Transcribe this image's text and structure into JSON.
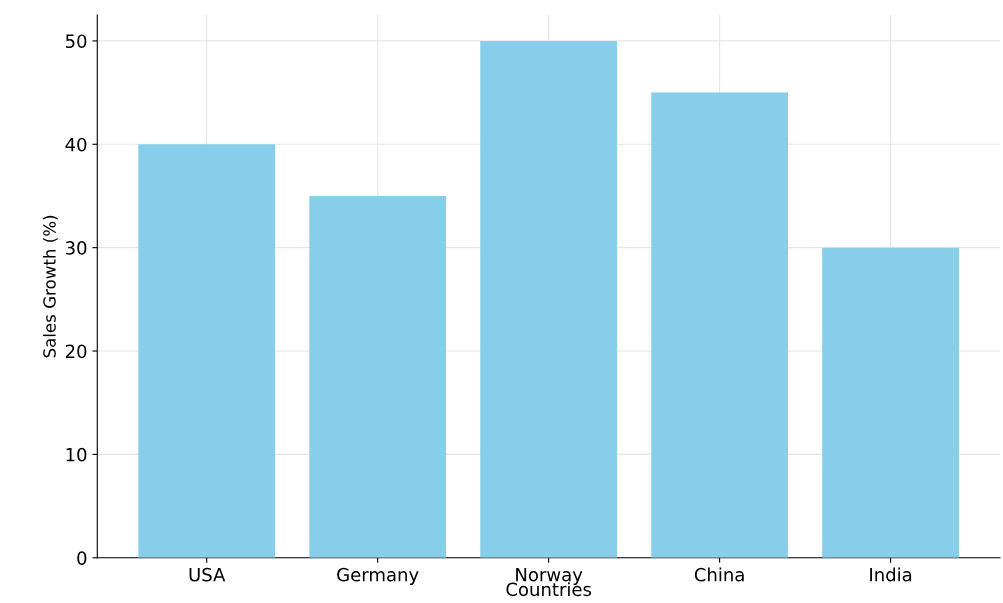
{
  "chart_data": {
    "type": "bar",
    "xlabel": "Countries",
    "ylabel": "Sales Growth (%)",
    "categories": [
      "USA",
      "Germany",
      "Norway",
      "China",
      "India"
    ],
    "values": [
      40,
      35,
      50,
      45,
      30
    ],
    "color": "#87ceeb",
    "ylim": [
      0,
      52.5
    ],
    "yticks": [
      0,
      10,
      20,
      30,
      40,
      50
    ],
    "grid": true
  }
}
